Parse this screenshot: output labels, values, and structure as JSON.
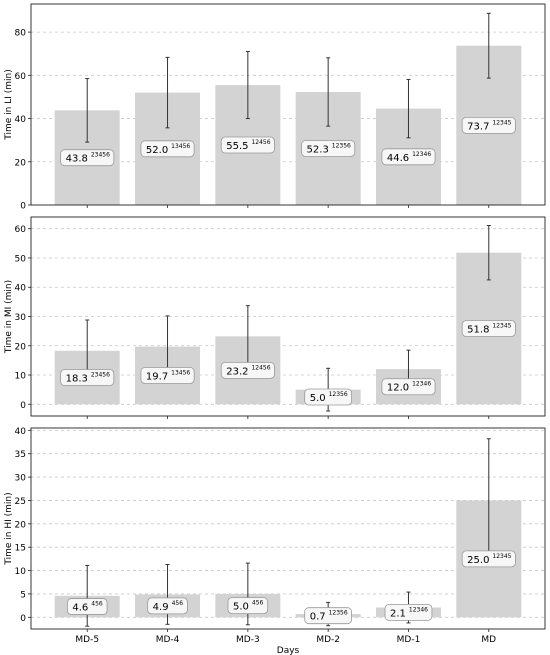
{
  "chart_data": [
    {
      "type": "bar",
      "ylabel": "Time in LI (min)",
      "ylim": [
        0,
        93
      ],
      "yticks": [
        0,
        20,
        40,
        60,
        80
      ],
      "grid": "y-dashed",
      "categories": [
        "MD-5",
        "MD-4",
        "MD-3",
        "MD-2",
        "MD-1",
        "MD"
      ],
      "values": [
        43.8,
        52.0,
        55.5,
        52.3,
        44.6,
        73.7
      ],
      "errors": [
        14.7,
        16.3,
        15.5,
        15.8,
        13.5,
        15.0
      ],
      "value_labels": [
        "43.8",
        "52.0",
        "55.5",
        "52.3",
        "44.6",
        "73.7"
      ],
      "superscripts": [
        "23456",
        "13456",
        "12456",
        "12356",
        "12346",
        "12345"
      ],
      "bar_color": "#d3d3d3"
    },
    {
      "type": "bar",
      "ylabel": "Time in MI (min)",
      "ylim": [
        -4,
        64
      ],
      "yticks": [
        0,
        10,
        20,
        30,
        40,
        50,
        60
      ],
      "grid": "y-dashed",
      "categories": [
        "MD-5",
        "MD-4",
        "MD-3",
        "MD-2",
        "MD-1",
        "MD"
      ],
      "values": [
        18.3,
        19.7,
        23.2,
        5.0,
        12.0,
        51.8
      ],
      "errors": [
        10.5,
        10.5,
        10.5,
        7.3,
        6.5,
        9.3
      ],
      "value_labels": [
        "18.3",
        "19.7",
        "23.2",
        "5.0",
        "12.0",
        "51.8"
      ],
      "superscripts": [
        "23456",
        "13456",
        "12456",
        "12356",
        "12346",
        "12345"
      ],
      "bar_color": "#d3d3d3"
    },
    {
      "type": "bar",
      "ylabel": "Time in HI (min)",
      "xlabel": "Days",
      "ylim": [
        -2.5,
        40.5
      ],
      "yticks": [
        0,
        5,
        10,
        15,
        20,
        25,
        30,
        35,
        40
      ],
      "grid": "y-dashed",
      "categories": [
        "MD-5",
        "MD-4",
        "MD-3",
        "MD-2",
        "MD-1",
        "MD"
      ],
      "values": [
        4.6,
        4.9,
        5.0,
        0.7,
        2.1,
        25.0
      ],
      "errors": [
        6.5,
        6.4,
        6.6,
        2.5,
        3.3,
        13.2
      ],
      "value_labels": [
        "4.6",
        "4.9",
        "5.0",
        "0.7",
        "2.1",
        "25.0"
      ],
      "superscripts": [
        "456",
        "456",
        "456",
        "12356",
        "12346",
        "12345"
      ],
      "bar_color": "#d3d3d3"
    }
  ]
}
